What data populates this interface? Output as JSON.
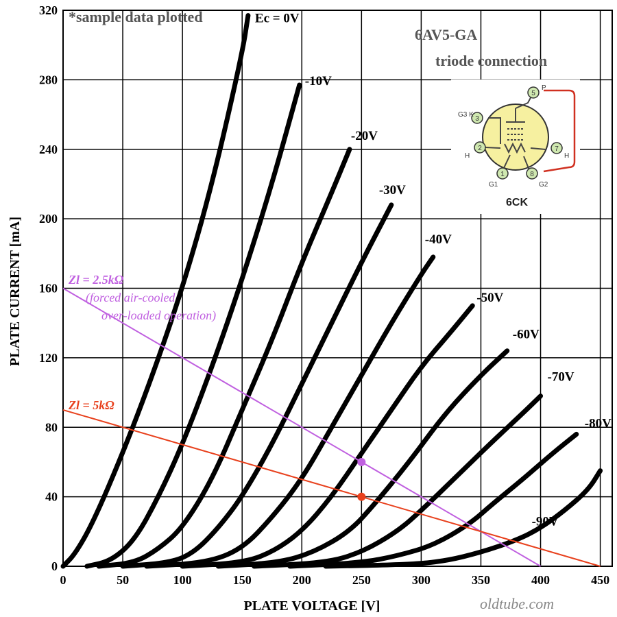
{
  "chart_data": {
    "type": "line",
    "title": "6AV5-GA",
    "subtitle": "triode connection",
    "note": "*sample data plotted",
    "xlabel": "PLATE VOLTAGE  [V]",
    "ylabel": "PLATE CURRENT  [mA]",
    "xlim": [
      0,
      460
    ],
    "ylim": [
      0,
      320
    ],
    "x_ticks": [
      0,
      50,
      100,
      150,
      200,
      250,
      300,
      350,
      400,
      450
    ],
    "y_ticks": [
      0,
      40,
      80,
      120,
      160,
      200,
      240,
      280,
      320
    ],
    "grid": true,
    "series": [
      {
        "name": "Ec = 0V",
        "points": [
          [
            0,
            0
          ],
          [
            10,
            7
          ],
          [
            25,
            25
          ],
          [
            50,
            65
          ],
          [
            75,
            110
          ],
          [
            100,
            160
          ],
          [
            125,
            220
          ],
          [
            150,
            295
          ],
          [
            155,
            317
          ]
        ]
      },
      {
        "name": "-10V",
        "points": [
          [
            20,
            0
          ],
          [
            40,
            3
          ],
          [
            60,
            15
          ],
          [
            80,
            40
          ],
          [
            100,
            70
          ],
          [
            125,
            115
          ],
          [
            150,
            165
          ],
          [
            175,
            220
          ],
          [
            198,
            277
          ]
        ]
      },
      {
        "name": "-20V",
        "points": [
          [
            30,
            0
          ],
          [
            60,
            2
          ],
          [
            80,
            10
          ],
          [
            100,
            22
          ],
          [
            125,
            50
          ],
          [
            150,
            90
          ],
          [
            175,
            130
          ],
          [
            200,
            175
          ],
          [
            225,
            215
          ],
          [
            240,
            240
          ]
        ]
      },
      {
        "name": "-30V",
        "points": [
          [
            50,
            0
          ],
          [
            90,
            2
          ],
          [
            110,
            8
          ],
          [
            130,
            22
          ],
          [
            150,
            40
          ],
          [
            175,
            70
          ],
          [
            200,
            105
          ],
          [
            225,
            140
          ],
          [
            250,
            175
          ],
          [
            275,
            208
          ]
        ]
      },
      {
        "name": "-40V",
        "points": [
          [
            70,
            0
          ],
          [
            120,
            2
          ],
          [
            150,
            10
          ],
          [
            175,
            28
          ],
          [
            200,
            50
          ],
          [
            225,
            80
          ],
          [
            250,
            110
          ],
          [
            275,
            140
          ],
          [
            300,
            168
          ],
          [
            310,
            178
          ]
        ]
      },
      {
        "name": "-50V",
        "points": [
          [
            100,
            0
          ],
          [
            150,
            2
          ],
          [
            175,
            8
          ],
          [
            200,
            20
          ],
          [
            225,
            40
          ],
          [
            250,
            65
          ],
          [
            275,
            90
          ],
          [
            300,
            115
          ],
          [
            325,
            135
          ],
          [
            343,
            150
          ]
        ]
      },
      {
        "name": "-60V",
        "points": [
          [
            130,
            0
          ],
          [
            180,
            2
          ],
          [
            210,
            8
          ],
          [
            240,
            20
          ],
          [
            260,
            35
          ],
          [
            290,
            60
          ],
          [
            320,
            88
          ],
          [
            350,
            110
          ],
          [
            372,
            124
          ]
        ]
      },
      {
        "name": "-70V",
        "points": [
          [
            160,
            0
          ],
          [
            220,
            2
          ],
          [
            250,
            8
          ],
          [
            280,
            20
          ],
          [
            300,
            32
          ],
          [
            330,
            52
          ],
          [
            360,
            72
          ],
          [
            385,
            88
          ],
          [
            400,
            98
          ]
        ]
      },
      {
        "name": "-80V",
        "points": [
          [
            190,
            0
          ],
          [
            250,
            2
          ],
          [
            280,
            6
          ],
          [
            310,
            12
          ],
          [
            340,
            24
          ],
          [
            360,
            36
          ],
          [
            385,
            50
          ],
          [
            410,
            65
          ],
          [
            430,
            76
          ]
        ]
      },
      {
        "name": "-90V",
        "points": [
          [
            220,
            0
          ],
          [
            290,
            1
          ],
          [
            320,
            3
          ],
          [
            350,
            8
          ],
          [
            380,
            15
          ],
          [
            400,
            22
          ],
          [
            420,
            32
          ],
          [
            440,
            44
          ],
          [
            450,
            55
          ]
        ]
      }
    ],
    "load_lines": [
      {
        "label": "Zl = 2.5kΩ",
        "note_line1": "(forced air-cooled",
        "note_line2": "over-loaded operation)",
        "color": "#c060e0",
        "points": [
          [
            0,
            160
          ],
          [
            400,
            0
          ]
        ],
        "operating_point": [
          250,
          60
        ]
      },
      {
        "label": "Zl = 5kΩ",
        "color": "#e8401c",
        "points": [
          [
            0,
            90
          ],
          [
            450,
            0
          ]
        ],
        "operating_point": [
          250,
          40
        ]
      }
    ]
  },
  "base_diagram": {
    "label": "6CK",
    "pins": [
      {
        "num": "1",
        "name": "G1"
      },
      {
        "num": "2",
        "name": "H"
      },
      {
        "num": "3",
        "name": "G3 K"
      },
      {
        "num": "5",
        "name": "P"
      },
      {
        "num": "7",
        "name": "H"
      },
      {
        "num": "8",
        "name": "G2"
      }
    ],
    "strap_color": "#d03020"
  },
  "watermark": "oldtube.com",
  "colors": {
    "curve": "#000000",
    "grid": "#000000",
    "socket_fill": "#f6f0a0",
    "pin_fill": "#cfe8b0"
  }
}
